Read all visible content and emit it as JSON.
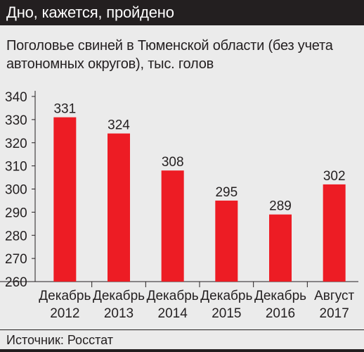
{
  "header": {
    "title": "Дно, кажется, пройдено"
  },
  "source": {
    "text": "Источник: Росстат"
  },
  "colors": {
    "bar": "#ed1c24",
    "header_bg": "#231f20",
    "background": "#ebebeb"
  },
  "chart_data": {
    "type": "bar",
    "title": "Поголовье свиней в Тюменской области (без учета автономных округов), тыс. голов",
    "categories": [
      [
        "Декабрь",
        "2012"
      ],
      [
        "Декабрь",
        "2013"
      ],
      [
        "Декабрь",
        "2014"
      ],
      [
        "Декабрь",
        "2015"
      ],
      [
        "Декабрь",
        "2016"
      ],
      [
        "Август",
        "2017"
      ]
    ],
    "values": [
      331,
      324,
      308,
      295,
      289,
      302
    ],
    "ylim": [
      260,
      340
    ],
    "yticks": [
      260,
      270,
      280,
      290,
      300,
      310,
      320,
      330,
      340
    ],
    "grid": false,
    "legend": "none"
  }
}
